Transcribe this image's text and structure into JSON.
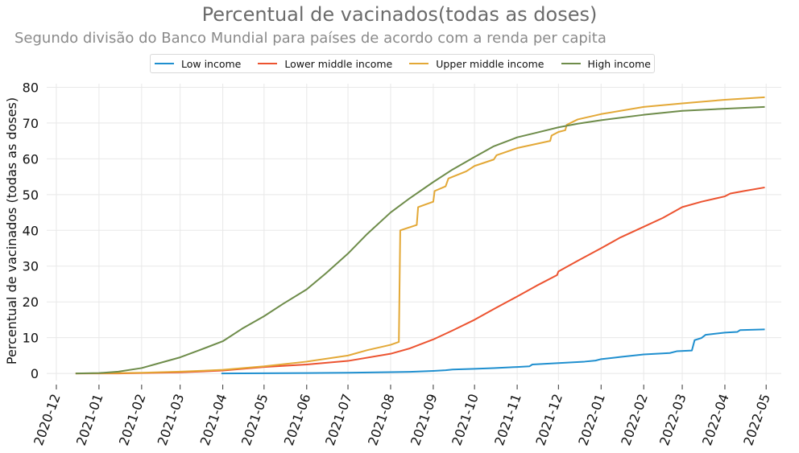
{
  "chart_data": {
    "type": "line",
    "title": "Percentual de vacinados(todas as doses)",
    "subtitle": "Segundo divisão do Banco Mundial para países de acordo com a renda per capita",
    "ylabel": "Percentual de vacinados (todas as doses)",
    "xlabel": "",
    "ylim": [
      -2,
      81
    ],
    "xlim": [
      "2020-11-24",
      "2022-05-12"
    ],
    "grid": true,
    "legend_position": "top-center",
    "yticks": [
      0,
      10,
      20,
      30,
      40,
      50,
      60,
      70,
      80
    ],
    "xticks": [
      "2020-12",
      "2021-01",
      "2021-02",
      "2021-03",
      "2021-04",
      "2021-05",
      "2021-06",
      "2021-07",
      "2021-08",
      "2021-09",
      "2021-10",
      "2021-11",
      "2021-12",
      "2022-01",
      "2022-02",
      "2022-03",
      "2022-04",
      "2022-05"
    ],
    "series": [
      {
        "name": "Low income",
        "color": "#1f8fcf",
        "points": [
          [
            "2021-03-31",
            0
          ],
          [
            "2021-05-01",
            0.05
          ],
          [
            "2021-06-01",
            0.1
          ],
          [
            "2021-07-01",
            0.2
          ],
          [
            "2021-08-01",
            0.35
          ],
          [
            "2021-08-15",
            0.45
          ],
          [
            "2021-09-01",
            0.7
          ],
          [
            "2021-09-10",
            0.9
          ],
          [
            "2021-09-15",
            1.1
          ],
          [
            "2021-10-01",
            1.3
          ],
          [
            "2021-10-15",
            1.5
          ],
          [
            "2021-11-01",
            1.8
          ],
          [
            "2021-11-10",
            2.0
          ],
          [
            "2021-11-12",
            2.5
          ],
          [
            "2021-12-01",
            2.9
          ],
          [
            "2021-12-20",
            3.3
          ],
          [
            "2021-12-28",
            3.6
          ],
          [
            "2022-01-01",
            4.0
          ],
          [
            "2022-01-15",
            4.6
          ],
          [
            "2022-02-01",
            5.3
          ],
          [
            "2022-02-20",
            5.7
          ],
          [
            "2022-02-25",
            6.2
          ],
          [
            "2022-03-08",
            6.4
          ],
          [
            "2022-03-10",
            9.3
          ],
          [
            "2022-03-15",
            9.9
          ],
          [
            "2022-03-18",
            10.8
          ],
          [
            "2022-04-01",
            11.4
          ],
          [
            "2022-04-10",
            11.6
          ],
          [
            "2022-04-12",
            12.1
          ],
          [
            "2022-04-30",
            12.3
          ]
        ]
      },
      {
        "name": "Lower middle income",
        "color": "#ec5330",
        "points": [
          [
            "2020-12-15",
            0
          ],
          [
            "2021-01-15",
            0
          ],
          [
            "2021-02-01",
            0.1
          ],
          [
            "2021-03-01",
            0.3
          ],
          [
            "2021-04-01",
            0.8
          ],
          [
            "2021-05-01",
            1.8
          ],
          [
            "2021-06-01",
            2.5
          ],
          [
            "2021-07-01",
            3.5
          ],
          [
            "2021-08-01",
            5.5
          ],
          [
            "2021-08-15",
            7.0
          ],
          [
            "2021-09-01",
            9.5
          ],
          [
            "2021-09-15",
            12.0
          ],
          [
            "2021-10-01",
            15.0
          ],
          [
            "2021-10-15",
            18.0
          ],
          [
            "2021-11-01",
            21.5
          ],
          [
            "2021-11-15",
            24.5
          ],
          [
            "2021-11-30",
            27.5
          ],
          [
            "2021-12-01",
            28.5
          ],
          [
            "2021-12-15",
            31.5
          ],
          [
            "2022-01-01",
            35.0
          ],
          [
            "2022-01-15",
            38.0
          ],
          [
            "2022-02-01",
            41.0
          ],
          [
            "2022-02-15",
            43.5
          ],
          [
            "2022-03-01",
            46.5
          ],
          [
            "2022-03-15",
            48.0
          ],
          [
            "2022-04-01",
            49.5
          ],
          [
            "2022-04-05",
            50.3
          ],
          [
            "2022-04-15",
            51.0
          ],
          [
            "2022-04-30",
            52.0
          ]
        ]
      },
      {
        "name": "Upper middle income",
        "color": "#e3a836",
        "points": [
          [
            "2020-12-15",
            0
          ],
          [
            "2021-01-15",
            0.1
          ],
          [
            "2021-02-01",
            0.2
          ],
          [
            "2021-03-01",
            0.5
          ],
          [
            "2021-04-01",
            1.0
          ],
          [
            "2021-05-01",
            2.0
          ],
          [
            "2021-06-01",
            3.3
          ],
          [
            "2021-07-01",
            5.0
          ],
          [
            "2021-07-15",
            6.5
          ],
          [
            "2021-08-01",
            8.0
          ],
          [
            "2021-08-07",
            8.8
          ],
          [
            "2021-08-08",
            40.0
          ],
          [
            "2021-08-20",
            41.5
          ],
          [
            "2021-08-21",
            46.5
          ],
          [
            "2021-09-01",
            48.0
          ],
          [
            "2021-09-02",
            51.0
          ],
          [
            "2021-09-10",
            52.3
          ],
          [
            "2021-09-12",
            54.5
          ],
          [
            "2021-09-25",
            56.5
          ],
          [
            "2021-10-01",
            58.0
          ],
          [
            "2021-10-15",
            59.8
          ],
          [
            "2021-10-17",
            61.0
          ],
          [
            "2021-11-01",
            63.0
          ],
          [
            "2021-11-25",
            65.0
          ],
          [
            "2021-11-26",
            66.5
          ],
          [
            "2021-12-01",
            67.5
          ],
          [
            "2021-12-06",
            68.0
          ],
          [
            "2021-12-07",
            69.5
          ],
          [
            "2021-12-15",
            71.0
          ],
          [
            "2022-01-01",
            72.5
          ],
          [
            "2022-02-01",
            74.5
          ],
          [
            "2022-03-01",
            75.5
          ],
          [
            "2022-04-01",
            76.5
          ],
          [
            "2022-04-30",
            77.2
          ]
        ]
      },
      {
        "name": "High income",
        "color": "#6e8c4a",
        "points": [
          [
            "2020-12-15",
            0
          ],
          [
            "2021-01-01",
            0.1
          ],
          [
            "2021-01-15",
            0.5
          ],
          [
            "2021-02-01",
            1.5
          ],
          [
            "2021-02-15",
            3.0
          ],
          [
            "2021-03-01",
            4.5
          ],
          [
            "2021-03-15",
            6.5
          ],
          [
            "2021-04-01",
            9.0
          ],
          [
            "2021-04-15",
            12.5
          ],
          [
            "2021-05-01",
            16.0
          ],
          [
            "2021-05-15",
            19.5
          ],
          [
            "2021-06-01",
            23.5
          ],
          [
            "2021-06-15",
            28.0
          ],
          [
            "2021-07-01",
            33.5
          ],
          [
            "2021-07-15",
            39.0
          ],
          [
            "2021-08-01",
            45.0
          ],
          [
            "2021-08-15",
            49.0
          ],
          [
            "2021-09-01",
            53.5
          ],
          [
            "2021-09-15",
            57.0
          ],
          [
            "2021-10-01",
            60.5
          ],
          [
            "2021-10-15",
            63.5
          ],
          [
            "2021-11-01",
            66.0
          ],
          [
            "2021-11-15",
            67.3
          ],
          [
            "2021-12-01",
            68.8
          ],
          [
            "2021-12-15",
            69.8
          ],
          [
            "2022-01-01",
            70.8
          ],
          [
            "2022-02-01",
            72.3
          ],
          [
            "2022-03-01",
            73.4
          ],
          [
            "2022-04-01",
            74.0
          ],
          [
            "2022-04-30",
            74.5
          ]
        ]
      }
    ]
  }
}
